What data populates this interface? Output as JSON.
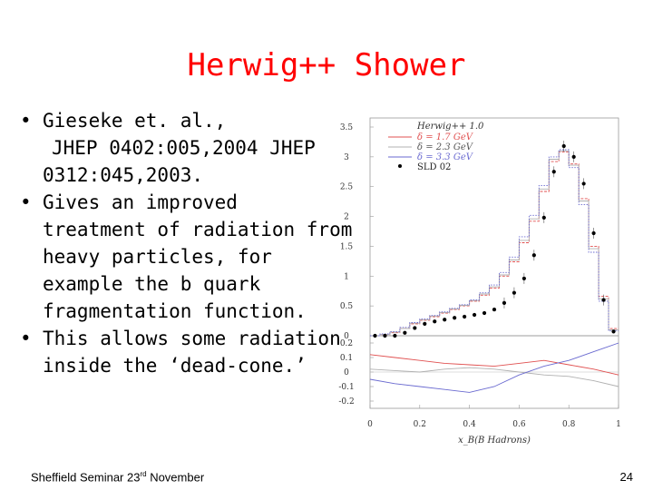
{
  "slide": {
    "title": "Herwig++ Shower",
    "bullets": [
      {
        "lines": [
          "Gieseke et. al.,",
          "JHEP 0402:005,2004 JHEP",
          "0312:045,2003."
        ]
      },
      {
        "lines": [
          "Gives an improved",
          "treatment of radiation from",
          "heavy particles, for",
          "example the b quark",
          "fragmentation function."
        ]
      },
      {
        "lines": [
          "This allows some radiation",
          "inside the ‘dead-cone.’"
        ]
      }
    ],
    "footer": {
      "left_main": "Sheffield Seminar 23",
      "left_sup": "rd",
      "left_tail": " November",
      "page_number": "24"
    }
  },
  "chart_data": {
    "type": "line",
    "xlabel": "x_B(B Hadrons)",
    "xlim": [
      0,
      1
    ],
    "x_ticks": [
      "0",
      "0.2",
      "0.4",
      "0.6",
      "0.8",
      "1"
    ],
    "main_panel": {
      "ylim": [
        0,
        3.5
      ],
      "y_ticks": [
        "0",
        "0.5",
        "1",
        "1.5",
        "2",
        "2.5",
        "3",
        "3.5"
      ],
      "legend_title": "Herwig++ 1.0",
      "legend_placement": "top-right",
      "series": [
        {
          "name": "δ = 1.7 GeV",
          "color": "#e05050",
          "style": "step",
          "x": [
            0.02,
            0.06,
            0.1,
            0.14,
            0.18,
            0.22,
            0.26,
            0.3,
            0.34,
            0.38,
            0.42,
            0.46,
            0.5,
            0.54,
            0.58,
            0.62,
            0.66,
            0.7,
            0.74,
            0.78,
            0.82,
            0.86,
            0.9,
            0.94,
            0.98
          ],
          "y": [
            0.0,
            0.02,
            0.05,
            0.12,
            0.2,
            0.26,
            0.32,
            0.38,
            0.44,
            0.5,
            0.58,
            0.68,
            0.8,
            1.0,
            1.24,
            1.56,
            1.92,
            2.42,
            2.92,
            3.08,
            2.88,
            2.3,
            1.5,
            0.66,
            0.12
          ]
        },
        {
          "name": "δ = 2.3 GeV",
          "color": "#b0b0b0",
          "style": "step",
          "x": [
            0.02,
            0.06,
            0.1,
            0.14,
            0.18,
            0.22,
            0.26,
            0.3,
            0.34,
            0.38,
            0.42,
            0.46,
            0.5,
            0.54,
            0.58,
            0.62,
            0.66,
            0.7,
            0.74,
            0.78,
            0.82,
            0.86,
            0.9,
            0.94,
            0.98
          ],
          "y": [
            0.0,
            0.02,
            0.06,
            0.12,
            0.21,
            0.27,
            0.33,
            0.39,
            0.45,
            0.51,
            0.59,
            0.7,
            0.82,
            1.02,
            1.27,
            1.6,
            1.96,
            2.46,
            2.96,
            3.1,
            2.86,
            2.26,
            1.46,
            0.62,
            0.1
          ]
        },
        {
          "name": "δ = 3.3 GeV",
          "color": "#6a6ad0",
          "style": "step",
          "x": [
            0.02,
            0.06,
            0.1,
            0.14,
            0.18,
            0.22,
            0.26,
            0.3,
            0.34,
            0.38,
            0.42,
            0.46,
            0.5,
            0.54,
            0.58,
            0.62,
            0.66,
            0.7,
            0.74,
            0.78,
            0.82,
            0.86,
            0.9,
            0.94,
            0.98
          ],
          "y": [
            0.0,
            0.03,
            0.07,
            0.14,
            0.22,
            0.28,
            0.34,
            0.4,
            0.46,
            0.52,
            0.6,
            0.72,
            0.85,
            1.06,
            1.32,
            1.66,
            2.02,
            2.52,
            3.0,
            3.12,
            2.82,
            2.2,
            1.4,
            0.58,
            0.08
          ]
        },
        {
          "name": "SLD 02",
          "color": "#000000",
          "style": "points",
          "x": [
            0.02,
            0.06,
            0.1,
            0.14,
            0.18,
            0.22,
            0.26,
            0.3,
            0.34,
            0.38,
            0.42,
            0.46,
            0.5,
            0.54,
            0.58,
            0.62,
            0.66,
            0.7,
            0.74,
            0.78,
            0.82,
            0.86,
            0.9,
            0.94,
            0.98
          ],
          "y": [
            0.0,
            0.0,
            0.0,
            0.05,
            0.13,
            0.2,
            0.24,
            0.27,
            0.3,
            0.32,
            0.35,
            0.38,
            0.44,
            0.55,
            0.72,
            0.96,
            1.35,
            1.98,
            2.75,
            3.18,
            3.0,
            2.55,
            1.72,
            0.6,
            0.07
          ]
        }
      ]
    },
    "ratio_panel": {
      "ylim": [
        -0.25,
        0.25
      ],
      "y_ticks": [
        "0.2",
        "0.1",
        "0",
        "-0.1",
        "-0.2"
      ],
      "series": [
        {
          "name": "δ = 1.7 GeV",
          "color": "#e05050",
          "x": [
            0,
            0.1,
            0.2,
            0.3,
            0.4,
            0.5,
            0.6,
            0.7,
            0.8,
            0.9,
            1.0
          ],
          "y": [
            0.12,
            0.1,
            0.08,
            0.06,
            0.05,
            0.04,
            0.06,
            0.08,
            0.05,
            0.02,
            -0.02
          ]
        },
        {
          "name": "δ = 2.3 GeV",
          "color": "#b0b0b0",
          "x": [
            0,
            0.1,
            0.2,
            0.3,
            0.4,
            0.5,
            0.6,
            0.7,
            0.8,
            0.9,
            1.0
          ],
          "y": [
            0.02,
            0.01,
            0.0,
            0.02,
            0.03,
            0.02,
            0.0,
            -0.02,
            -0.03,
            -0.06,
            -0.1
          ]
        },
        {
          "name": "δ = 3.3 GeV",
          "color": "#6a6ad0",
          "x": [
            0,
            0.1,
            0.2,
            0.3,
            0.4,
            0.5,
            0.6,
            0.7,
            0.8,
            0.9,
            1.0
          ],
          "y": [
            -0.05,
            -0.08,
            -0.1,
            -0.12,
            -0.14,
            -0.1,
            -0.02,
            0.04,
            0.08,
            0.14,
            0.2
          ]
        }
      ]
    }
  }
}
